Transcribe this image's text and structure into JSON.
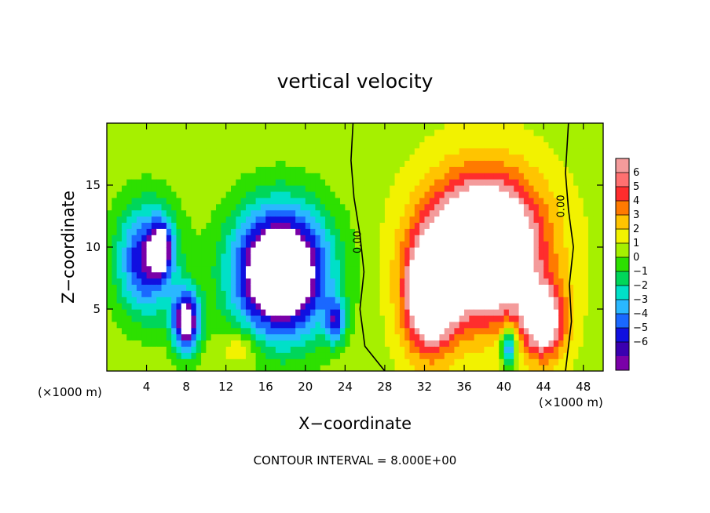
{
  "chart_data": {
    "type": "heatmap",
    "title": "vertical velocity",
    "xlabel": "X−coordinate",
    "ylabel": "Z−coordinate",
    "x_unit": "(×1000 m)",
    "y_unit": "(×1000 m)",
    "xlim": [
      0,
      50
    ],
    "ylim": [
      0,
      20
    ],
    "x_ticks": [
      4,
      8,
      12,
      16,
      20,
      24,
      28,
      32,
      36,
      40,
      44,
      48
    ],
    "x_tick_labels": [
      "4",
      "8",
      "12",
      "16",
      "20",
      "24",
      "28",
      "32",
      "36",
      "40",
      "44",
      "48"
    ],
    "y_ticks": [
      5,
      10,
      15
    ],
    "y_tick_labels": [
      "5",
      "10",
      "15"
    ],
    "colorbar": {
      "levels": [
        6,
        5,
        4,
        3,
        2,
        1,
        0,
        -1,
        -2,
        -3,
        -4,
        -5,
        -6
      ],
      "labels": [
        "6",
        "5",
        "4",
        "3",
        "2",
        "1",
        "0",
        "−1",
        "−2",
        "−3",
        "−4",
        "−5",
        "−6"
      ],
      "colors": [
        "#f49b9b",
        "#ff7070",
        "#ff2d2d",
        "#ff7a00",
        "#ffc400",
        "#f2f200",
        "#a6f000",
        "#2de000",
        "#00d65a",
        "#00e0c8",
        "#2ab8ff",
        "#1a68ff",
        "#1010e0",
        "#3a00b0",
        "#7a00a8"
      ]
    },
    "contour_labels": [
      "0.00",
      "0.00"
    ],
    "footer": "CONTOUR INTERVAL = 8.000E+00",
    "features": [
      {
        "kind": "updraft",
        "x": 38,
        "z": 10,
        "sx": 5.5,
        "sz": 5.5,
        "w": 12
      },
      {
        "kind": "updraft",
        "x": 32.5,
        "z": 6,
        "sx": 2.6,
        "sz": 4.5,
        "w": 8
      },
      {
        "kind": "updraft",
        "x": 44,
        "z": 4,
        "sx": 2.2,
        "sz": 3.0,
        "w": 7
      },
      {
        "kind": "downdraft",
        "x": 17.5,
        "z": 8,
        "sx": 4.8,
        "sz": 5.2,
        "w": -12
      },
      {
        "kind": "downdraft",
        "x": 4,
        "z": 9,
        "sx": 3.0,
        "sz": 4.5,
        "w": -7
      },
      {
        "kind": "downdraft",
        "x": 8,
        "z": 4,
        "sx": 1.4,
        "sz": 2.5,
        "w": -9
      },
      {
        "kind": "downdraft",
        "x": 5.5,
        "z": 10,
        "sx": 1.0,
        "sz": 2.0,
        "w": -6
      },
      {
        "kind": "downdraft",
        "x": 23,
        "z": 4,
        "sx": 1.0,
        "sz": 1.8,
        "w": -5
      },
      {
        "kind": "downdraft",
        "x": 40.5,
        "z": 2,
        "sx": 0.8,
        "sz": 1.5,
        "w": -6
      },
      {
        "kind": "updraft",
        "x": 13.5,
        "z": 2,
        "sx": 2.0,
        "sz": 1.5,
        "w": 2
      }
    ]
  }
}
